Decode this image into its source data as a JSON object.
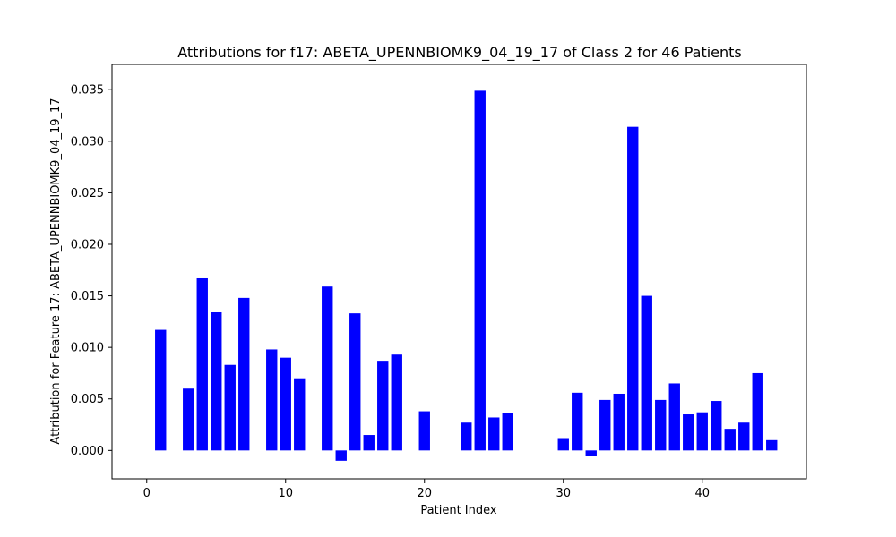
{
  "chart_data": {
    "type": "bar",
    "title": "Attributions for f17: ABETA_UPENNBIOMK9_04_19_17 of Class 2 for 46 Patients",
    "xlabel": "Patient Index",
    "ylabel": "Attribution for Feature 17: ABETA_UPENNBIOMK9_04_19_17",
    "xlim": [
      -2.5,
      47.5
    ],
    "ylim": [
      -0.00275,
      0.03745
    ],
    "xticks": [
      0,
      10,
      20,
      30,
      40
    ],
    "xtick_labels": [
      "0",
      "10",
      "20",
      "30",
      "40"
    ],
    "yticks": [
      0.0,
      0.005,
      0.01,
      0.015,
      0.02,
      0.025,
      0.03,
      0.035
    ],
    "ytick_labels": [
      "0.000",
      "0.005",
      "0.010",
      "0.015",
      "0.020",
      "0.025",
      "0.030",
      "0.035"
    ],
    "bar_color": "#0000ff",
    "grid": false,
    "legend": "none",
    "x": [
      0,
      1,
      2,
      3,
      4,
      5,
      6,
      7,
      8,
      9,
      10,
      11,
      12,
      13,
      14,
      15,
      16,
      17,
      18,
      19,
      20,
      21,
      22,
      23,
      24,
      25,
      26,
      27,
      28,
      29,
      30,
      31,
      32,
      33,
      34,
      35,
      36,
      37,
      38,
      39,
      40,
      41,
      42,
      43,
      44,
      45
    ],
    "values": [
      0,
      0.0117,
      0,
      0.006,
      0.0167,
      0.0134,
      0.0083,
      0.0148,
      0,
      0.0098,
      0.009,
      0.007,
      0,
      0.0159,
      -0.001,
      0.0133,
      0.0015,
      0.0087,
      0.0093,
      0,
      0.0038,
      0,
      0,
      0.0027,
      0.0349,
      0.0032,
      0.0036,
      0,
      0,
      0,
      0.0012,
      0.0056,
      -0.0005,
      0.0049,
      0.0055,
      0.0314,
      0.015,
      0.0049,
      0.0065,
      0.0035,
      0.0037,
      0.0048,
      0.0021,
      0.0027,
      0.0075,
      0.001
    ]
  }
}
